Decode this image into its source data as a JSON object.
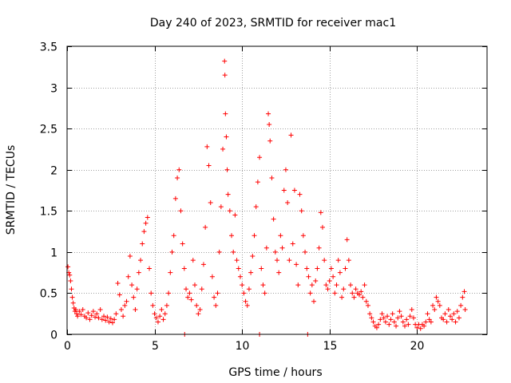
{
  "chart_data": {
    "type": "scatter",
    "title": "Day 240 of 2023, SRMTID for receiver mac1",
    "xlabel": "GPS time / hours",
    "ylabel": "SRMTID / TECUs",
    "xlim": [
      0,
      24
    ],
    "ylim": [
      0,
      3.5
    ],
    "xticks": [
      0,
      5,
      10,
      15,
      20
    ],
    "xtick_labels": [
      "0",
      "5",
      "10",
      "15",
      "20"
    ],
    "yticks": [
      0,
      0.5,
      1,
      1.5,
      2,
      2.5,
      3,
      3.5
    ],
    "ytick_labels": [
      "0",
      "0.5",
      "1",
      "1.5",
      "2",
      "2.5",
      "3",
      "3.5"
    ],
    "grid": true,
    "marker": "+",
    "color": "#ff0000",
    "series": [
      {
        "name": "SRMTID",
        "points": [
          [
            0.05,
            0.82
          ],
          [
            0.1,
            0.75
          ],
          [
            0.15,
            0.72
          ],
          [
            0.2,
            0.65
          ],
          [
            0.25,
            0.55
          ],
          [
            0.3,
            0.45
          ],
          [
            0.35,
            0.38
          ],
          [
            0.4,
            0.32
          ],
          [
            0.45,
            0.28
          ],
          [
            0.5,
            0.3
          ],
          [
            0.55,
            0.25
          ],
          [
            0.6,
            0.22
          ],
          [
            0.7,
            0.28
          ],
          [
            0.8,
            0.24
          ],
          [
            0.9,
            0.3
          ],
          [
            1.0,
            0.22
          ],
          [
            1.1,
            0.2
          ],
          [
            1.2,
            0.26
          ],
          [
            1.3,
            0.18
          ],
          [
            1.4,
            0.23
          ],
          [
            1.5,
            0.28
          ],
          [
            1.6,
            0.21
          ],
          [
            1.7,
            0.25
          ],
          [
            1.8,
            0.2
          ],
          [
            1.9,
            0.3
          ],
          [
            2.0,
            0.18
          ],
          [
            2.1,
            0.22
          ],
          [
            2.2,
            0.17
          ],
          [
            2.3,
            0.21
          ],
          [
            2.4,
            0.15
          ],
          [
            2.5,
            0.19
          ],
          [
            2.6,
            0.14
          ],
          [
            2.7,
            0.18
          ],
          [
            2.8,
            0.25
          ],
          [
            2.9,
            0.62
          ],
          [
            3.0,
            0.48
          ],
          [
            3.1,
            0.3
          ],
          [
            3.2,
            0.22
          ],
          [
            3.3,
            0.35
          ],
          [
            3.4,
            0.4
          ],
          [
            3.5,
            0.7
          ],
          [
            3.6,
            0.95
          ],
          [
            3.7,
            0.6
          ],
          [
            3.8,
            0.45
          ],
          [
            3.9,
            0.3
          ],
          [
            4.0,
            0.55
          ],
          [
            4.1,
            0.75
          ],
          [
            4.2,
            0.9
          ],
          [
            4.3,
            1.1
          ],
          [
            4.4,
            1.25
          ],
          [
            4.5,
            1.35
          ],
          [
            4.6,
            1.42
          ],
          [
            4.7,
            0.8
          ],
          [
            4.8,
            0.5
          ],
          [
            4.9,
            0.35
          ],
          [
            5.0,
            0.25
          ],
          [
            5.1,
            0.2
          ],
          [
            5.2,
            0.15
          ],
          [
            5.3,
            0.22
          ],
          [
            5.4,
            0.3
          ],
          [
            5.5,
            0.18
          ],
          [
            5.6,
            0.25
          ],
          [
            5.7,
            0.35
          ],
          [
            5.8,
            0.5
          ],
          [
            5.9,
            0.75
          ],
          [
            6.0,
            1.0
          ],
          [
            6.1,
            1.2
          ],
          [
            6.2,
            1.65
          ],
          [
            6.3,
            1.9
          ],
          [
            6.4,
            2.0
          ],
          [
            6.5,
            1.5
          ],
          [
            6.6,
            1.1
          ],
          [
            6.7,
            0.8
          ],
          [
            6.8,
            0.55
          ],
          [
            6.9,
            0.45
          ],
          [
            7.0,
            0.5
          ],
          [
            7.1,
            0.42
          ],
          [
            7.2,
            0.9
          ],
          [
            7.3,
            0.6
          ],
          [
            7.4,
            0.35
          ],
          [
            7.5,
            0.25
          ],
          [
            7.6,
            0.3
          ],
          [
            7.7,
            0.55
          ],
          [
            7.8,
            0.85
          ],
          [
            7.9,
            1.3
          ],
          [
            8.0,
            2.28
          ],
          [
            8.1,
            2.05
          ],
          [
            8.2,
            1.6
          ],
          [
            8.3,
            0.7
          ],
          [
            8.4,
            0.45
          ],
          [
            8.5,
            0.35
          ],
          [
            8.6,
            0.5
          ],
          [
            8.7,
            1.0
          ],
          [
            8.8,
            1.55
          ],
          [
            8.9,
            2.25
          ],
          [
            9.0,
            3.32
          ],
          [
            9.02,
            3.15
          ],
          [
            9.05,
            2.68
          ],
          [
            9.1,
            2.4
          ],
          [
            9.15,
            2.0
          ],
          [
            9.2,
            1.7
          ],
          [
            9.3,
            1.5
          ],
          [
            9.4,
            1.2
          ],
          [
            9.5,
            1.0
          ],
          [
            9.6,
            1.45
          ],
          [
            9.7,
            0.9
          ],
          [
            9.8,
            0.8
          ],
          [
            9.9,
            0.7
          ],
          [
            10.0,
            0.6
          ],
          [
            10.1,
            0.5
          ],
          [
            10.2,
            0.4
          ],
          [
            10.3,
            0.35
          ],
          [
            10.4,
            0.55
          ],
          [
            10.5,
            0.75
          ],
          [
            10.6,
            0.95
          ],
          [
            10.7,
            1.2
          ],
          [
            10.8,
            1.55
          ],
          [
            10.9,
            1.85
          ],
          [
            11.0,
            2.15
          ],
          [
            11.1,
            0.8
          ],
          [
            11.2,
            0.6
          ],
          [
            11.3,
            0.5
          ],
          [
            11.4,
            1.05
          ],
          [
            11.5,
            2.68
          ],
          [
            11.55,
            2.55
          ],
          [
            11.6,
            2.35
          ],
          [
            11.7,
            1.9
          ],
          [
            11.8,
            1.4
          ],
          [
            11.9,
            1.0
          ],
          [
            12.0,
            0.9
          ],
          [
            12.1,
            0.75
          ],
          [
            12.2,
            1.2
          ],
          [
            12.3,
            1.05
          ],
          [
            12.4,
            1.75
          ],
          [
            12.5,
            2.0
          ],
          [
            12.6,
            1.6
          ],
          [
            12.7,
            0.9
          ],
          [
            12.8,
            2.42
          ],
          [
            12.9,
            1.1
          ],
          [
            13.0,
            1.75
          ],
          [
            13.1,
            0.85
          ],
          [
            13.2,
            0.6
          ],
          [
            13.3,
            1.7
          ],
          [
            13.4,
            1.5
          ],
          [
            13.5,
            1.2
          ],
          [
            13.6,
            1.0
          ],
          [
            13.7,
            0.8
          ],
          [
            13.8,
            0.7
          ],
          [
            13.9,
            0.5
          ],
          [
            14.0,
            0.6
          ],
          [
            14.1,
            0.4
          ],
          [
            14.2,
            0.65
          ],
          [
            14.3,
            0.8
          ],
          [
            14.4,
            1.05
          ],
          [
            14.5,
            1.48
          ],
          [
            14.6,
            1.3
          ],
          [
            14.7,
            0.9
          ],
          [
            14.8,
            0.6
          ],
          [
            14.9,
            0.55
          ],
          [
            15.0,
            0.65
          ],
          [
            15.1,
            0.8
          ],
          [
            15.2,
            0.7
          ],
          [
            15.3,
            0.5
          ],
          [
            15.4,
            0.6
          ],
          [
            15.5,
            0.9
          ],
          [
            15.6,
            0.75
          ],
          [
            15.7,
            0.45
          ],
          [
            15.8,
            0.55
          ],
          [
            15.9,
            0.8
          ],
          [
            16.0,
            1.15
          ],
          [
            16.1,
            0.9
          ],
          [
            16.2,
            0.6
          ],
          [
            16.3,
            0.5
          ],
          [
            16.4,
            0.45
          ],
          [
            16.5,
            0.55
          ],
          [
            16.6,
            0.5
          ],
          [
            16.7,
            0.48
          ],
          [
            16.8,
            0.52
          ],
          [
            16.9,
            0.45
          ],
          [
            17.0,
            0.6
          ],
          [
            17.1,
            0.4
          ],
          [
            17.2,
            0.35
          ],
          [
            17.3,
            0.25
          ],
          [
            17.4,
            0.2
          ],
          [
            17.5,
            0.15
          ],
          [
            17.6,
            0.1
          ],
          [
            17.7,
            0.08
          ],
          [
            17.8,
            0.12
          ],
          [
            17.9,
            0.18
          ],
          [
            18.0,
            0.25
          ],
          [
            18.1,
            0.2
          ],
          [
            18.2,
            0.15
          ],
          [
            18.3,
            0.22
          ],
          [
            18.4,
            0.12
          ],
          [
            18.5,
            0.18
          ],
          [
            18.6,
            0.25
          ],
          [
            18.7,
            0.15
          ],
          [
            18.8,
            0.1
          ],
          [
            18.9,
            0.2
          ],
          [
            19.0,
            0.28
          ],
          [
            19.1,
            0.22
          ],
          [
            19.2,
            0.15
          ],
          [
            19.3,
            0.1
          ],
          [
            19.4,
            0.18
          ],
          [
            19.5,
            0.12
          ],
          [
            19.6,
            0.22
          ],
          [
            19.7,
            0.3
          ],
          [
            19.8,
            0.2
          ],
          [
            19.9,
            0.12
          ],
          [
            20.0,
            0.08
          ],
          [
            20.1,
            0.12
          ],
          [
            20.2,
            0.07
          ],
          [
            20.3,
            0.12
          ],
          [
            20.4,
            0.1
          ],
          [
            20.5,
            0.15
          ],
          [
            20.6,
            0.25
          ],
          [
            20.7,
            0.18
          ],
          [
            20.8,
            0.15
          ],
          [
            20.9,
            0.35
          ],
          [
            21.0,
            0.3
          ],
          [
            21.1,
            0.45
          ],
          [
            21.2,
            0.4
          ],
          [
            21.3,
            0.35
          ],
          [
            21.4,
            0.2
          ],
          [
            21.5,
            0.18
          ],
          [
            21.6,
            0.25
          ],
          [
            21.7,
            0.15
          ],
          [
            21.8,
            0.3
          ],
          [
            21.9,
            0.22
          ],
          [
            22.0,
            0.18
          ],
          [
            22.1,
            0.25
          ],
          [
            22.2,
            0.15
          ],
          [
            22.3,
            0.28
          ],
          [
            22.4,
            0.2
          ],
          [
            22.5,
            0.35
          ],
          [
            22.6,
            0.45
          ],
          [
            22.7,
            0.52
          ],
          [
            22.75,
            0.3
          ],
          [
            6.72,
            0.0
          ],
          [
            11.0,
            0.0
          ],
          [
            13.75,
            0.0
          ]
        ]
      }
    ]
  }
}
